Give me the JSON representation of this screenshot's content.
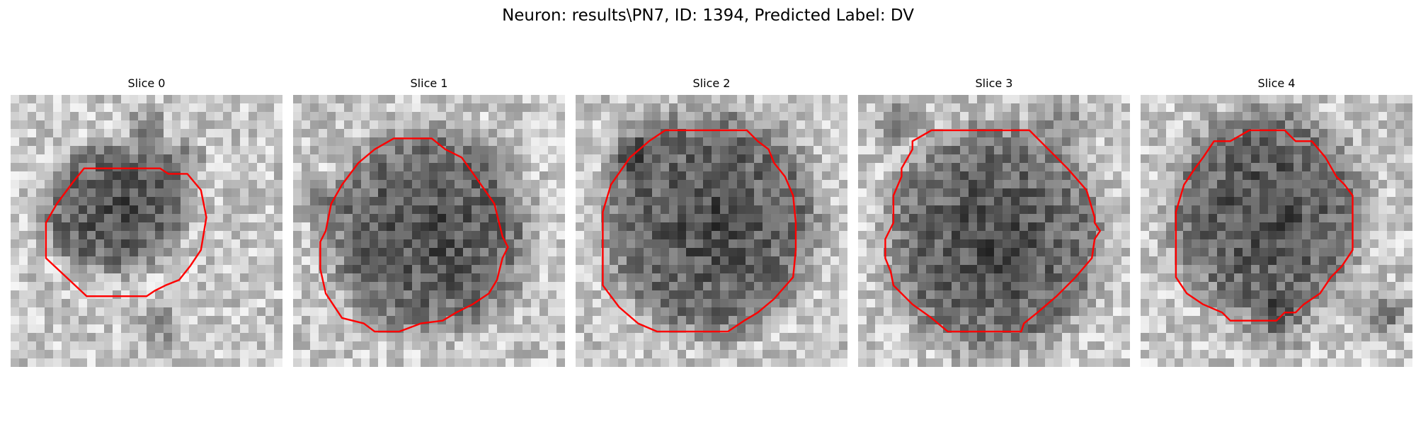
{
  "figure": {
    "title": "Neuron: results\\PN7, ID: 1394, Predicted Label: DV",
    "contour_color": "#ff0000"
  },
  "panels": [
    {
      "title": "Slice 0",
      "seed": 11,
      "dark_center": [
        0.38,
        0.42
      ],
      "dark_radius": [
        0.22,
        0.2
      ],
      "extra_dark": [
        [
          0.62,
          0.25,
          0.12
        ],
        [
          0.5,
          0.12,
          0.1
        ],
        [
          0.55,
          0.85,
          0.1
        ]
      ],
      "contour": [
        [
          0.27,
          0.27
        ],
        [
          0.55,
          0.27
        ],
        [
          0.58,
          0.29
        ],
        [
          0.65,
          0.29
        ],
        [
          0.7,
          0.35
        ],
        [
          0.72,
          0.45
        ],
        [
          0.7,
          0.57
        ],
        [
          0.66,
          0.63
        ],
        [
          0.62,
          0.68
        ],
        [
          0.57,
          0.7
        ],
        [
          0.53,
          0.72
        ],
        [
          0.5,
          0.74
        ],
        [
          0.47,
          0.74
        ],
        [
          0.28,
          0.74
        ],
        [
          0.13,
          0.6
        ],
        [
          0.13,
          0.47
        ],
        [
          0.17,
          0.4
        ],
        [
          0.23,
          0.32
        ]
      ]
    },
    {
      "title": "Slice 1",
      "seed": 23,
      "dark_center": [
        0.5,
        0.5
      ],
      "dark_radius": [
        0.31,
        0.32
      ],
      "extra_dark": [
        [
          0.1,
          0.4,
          0.1
        ]
      ],
      "contour": [
        [
          0.37,
          0.16
        ],
        [
          0.51,
          0.16
        ],
        [
          0.56,
          0.2
        ],
        [
          0.62,
          0.23
        ],
        [
          0.67,
          0.3
        ],
        [
          0.74,
          0.4
        ],
        [
          0.77,
          0.52
        ],
        [
          0.79,
          0.56
        ],
        [
          0.77,
          0.6
        ],
        [
          0.75,
          0.68
        ],
        [
          0.72,
          0.73
        ],
        [
          0.66,
          0.77
        ],
        [
          0.6,
          0.8
        ],
        [
          0.55,
          0.83
        ],
        [
          0.47,
          0.84
        ],
        [
          0.39,
          0.87
        ],
        [
          0.3,
          0.87
        ],
        [
          0.26,
          0.84
        ],
        [
          0.18,
          0.82
        ],
        [
          0.12,
          0.73
        ],
        [
          0.1,
          0.64
        ],
        [
          0.1,
          0.54
        ],
        [
          0.12,
          0.5
        ],
        [
          0.14,
          0.4
        ],
        [
          0.18,
          0.33
        ],
        [
          0.24,
          0.25
        ],
        [
          0.3,
          0.2
        ]
      ]
    },
    {
      "title": "Slice 2",
      "seed": 37,
      "dark_center": [
        0.5,
        0.47
      ],
      "dark_radius": [
        0.33,
        0.35
      ],
      "extra_dark": [
        [
          0.2,
          0.2,
          0.12
        ]
      ],
      "contour": [
        [
          0.33,
          0.13
        ],
        [
          0.63,
          0.13
        ],
        [
          0.67,
          0.17
        ],
        [
          0.71,
          0.2
        ],
        [
          0.73,
          0.25
        ],
        [
          0.77,
          0.3
        ],
        [
          0.8,
          0.37
        ],
        [
          0.81,
          0.47
        ],
        [
          0.81,
          0.57
        ],
        [
          0.8,
          0.67
        ],
        [
          0.73,
          0.75
        ],
        [
          0.67,
          0.8
        ],
        [
          0.62,
          0.83
        ],
        [
          0.56,
          0.87
        ],
        [
          0.3,
          0.87
        ],
        [
          0.23,
          0.84
        ],
        [
          0.16,
          0.78
        ],
        [
          0.1,
          0.7
        ],
        [
          0.1,
          0.6
        ],
        [
          0.1,
          0.43
        ],
        [
          0.13,
          0.33
        ],
        [
          0.2,
          0.23
        ],
        [
          0.27,
          0.17
        ]
      ]
    },
    {
      "title": "Slice 3",
      "seed": 53,
      "dark_center": [
        0.5,
        0.53
      ],
      "dark_radius": [
        0.33,
        0.35
      ],
      "extra_dark": [
        [
          0.15,
          0.1,
          0.1
        ],
        [
          0.75,
          0.1,
          0.1
        ]
      ],
      "contour": [
        [
          0.3,
          0.13
        ],
        [
          0.63,
          0.13
        ],
        [
          0.7,
          0.2
        ],
        [
          0.77,
          0.27
        ],
        [
          0.84,
          0.35
        ],
        [
          0.87,
          0.45
        ],
        [
          0.87,
          0.47
        ],
        [
          0.89,
          0.5
        ],
        [
          0.87,
          0.53
        ],
        [
          0.86,
          0.6
        ],
        [
          0.8,
          0.67
        ],
        [
          0.73,
          0.74
        ],
        [
          0.66,
          0.8
        ],
        [
          0.61,
          0.84
        ],
        [
          0.6,
          0.87
        ],
        [
          0.33,
          0.87
        ],
        [
          0.27,
          0.82
        ],
        [
          0.2,
          0.77
        ],
        [
          0.13,
          0.7
        ],
        [
          0.12,
          0.65
        ],
        [
          0.1,
          0.6
        ],
        [
          0.1,
          0.53
        ],
        [
          0.13,
          0.47
        ],
        [
          0.13,
          0.37
        ],
        [
          0.16,
          0.3
        ],
        [
          0.16,
          0.27
        ],
        [
          0.2,
          0.2
        ],
        [
          0.2,
          0.17
        ],
        [
          0.27,
          0.13
        ]
      ]
    },
    {
      "title": "Slice 4",
      "seed": 71,
      "dark_center": [
        0.47,
        0.43
      ],
      "dark_radius": [
        0.3,
        0.32
      ],
      "extra_dark": [
        [
          0.5,
          0.85,
          0.15
        ],
        [
          0.9,
          0.8,
          0.12
        ]
      ],
      "contour": [
        [
          0.43,
          0.13
        ],
        [
          0.53,
          0.13
        ],
        [
          0.57,
          0.17
        ],
        [
          0.63,
          0.17
        ],
        [
          0.68,
          0.23
        ],
        [
          0.72,
          0.3
        ],
        [
          0.75,
          0.33
        ],
        [
          0.78,
          0.37
        ],
        [
          0.78,
          0.53
        ],
        [
          0.78,
          0.57
        ],
        [
          0.74,
          0.63
        ],
        [
          0.7,
          0.67
        ],
        [
          0.66,
          0.73
        ],
        [
          0.6,
          0.77
        ],
        [
          0.57,
          0.8
        ],
        [
          0.53,
          0.8
        ],
        [
          0.5,
          0.83
        ],
        [
          0.33,
          0.83
        ],
        [
          0.3,
          0.8
        ],
        [
          0.23,
          0.77
        ],
        [
          0.17,
          0.73
        ],
        [
          0.13,
          0.67
        ],
        [
          0.13,
          0.57
        ],
        [
          0.13,
          0.43
        ],
        [
          0.16,
          0.33
        ],
        [
          0.2,
          0.27
        ],
        [
          0.23,
          0.23
        ],
        [
          0.27,
          0.17
        ],
        [
          0.33,
          0.17
        ],
        [
          0.4,
          0.13
        ]
      ]
    }
  ]
}
